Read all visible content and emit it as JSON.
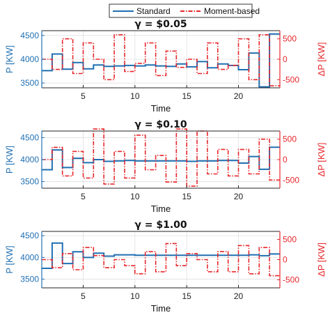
{
  "legend": {
    "standard_label": "Standard",
    "moment_label": "Moment-based"
  },
  "colors": {
    "standard": "#1f6fb2",
    "moment": "#e8262a",
    "grid": "#e0e0e0"
  },
  "chart_data": [
    {
      "type": "line",
      "step": true,
      "title": "γ = $0.05",
      "xlabel": "Time",
      "ylabel_left": "P [KW]",
      "ylabel_right": "ΔP [KW]",
      "xlim": [
        1,
        24
      ],
      "ylim_left": [
        3400,
        4600
      ],
      "ylim_right": [
        -700,
        700
      ],
      "yticks_left": [
        3500,
        4000,
        4500
      ],
      "yticks_right": [
        -500,
        0,
        500
      ],
      "xticks": [
        5,
        10,
        15,
        20
      ],
      "series": [
        {
          "name": "Standard",
          "axis": "left",
          "values": [
            3760,
            4110,
            3790,
            3930,
            3800,
            3880,
            3850,
            3860,
            3870,
            3860,
            3880,
            3860,
            3850,
            3900,
            3840,
            3950,
            3820,
            3900,
            3870,
            3780,
            4130,
            3420,
            4530
          ]
        },
        {
          "name": "Moment-based",
          "axis": "right",
          "values": [
            0,
            -250,
            500,
            -350,
            400,
            0,
            -500,
            600,
            -300,
            -100,
            400,
            -400,
            200,
            -200,
            0,
            -350,
            400,
            -250,
            -150,
            500,
            -500,
            600,
            -650
          ]
        }
      ]
    },
    {
      "type": "line",
      "step": true,
      "title": "γ = $0.10",
      "xlabel": "Time",
      "ylabel_left": "P [KW]",
      "ylabel_right": "ΔP [KW]",
      "xlim": [
        1,
        24
      ],
      "ylim_left": [
        3350,
        4650
      ],
      "ylim_right": [
        -700,
        700
      ],
      "yticks_left": [
        3500,
        4000,
        4500
      ],
      "yticks_right": [
        -500,
        0,
        500
      ],
      "xticks": [
        5,
        10,
        15,
        20
      ],
      "series": [
        {
          "name": "Standard",
          "axis": "left",
          "values": [
            3770,
            4220,
            3820,
            4030,
            3930,
            4000,
            3960,
            3970,
            3980,
            3970,
            3970,
            3970,
            3970,
            3970,
            3960,
            3970,
            3970,
            3980,
            3980,
            3920,
            4070,
            3780,
            4280
          ]
        },
        {
          "name": "Moment-based",
          "axis": "right",
          "values": [
            0,
            300,
            -400,
            200,
            -450,
            750,
            -600,
            200,
            -450,
            600,
            -250,
            100,
            -550,
            750,
            -650,
            700,
            -350,
            250,
            -400,
            250,
            -350,
            500,
            -500
          ]
        }
      ]
    },
    {
      "type": "line",
      "step": true,
      "title": "γ = $1.00",
      "xlabel": "Time",
      "ylabel_left": "P [KW]",
      "ylabel_right": "ΔP [KW]",
      "xlim": [
        1,
        24
      ],
      "ylim_left": [
        3300,
        4600
      ],
      "ylim_right": [
        -700,
        700
      ],
      "yticks_left": [
        3500,
        4000,
        4500
      ],
      "yticks_right": [
        -500,
        0,
        500
      ],
      "xticks": [
        5,
        10,
        15,
        20
      ],
      "series": [
        {
          "name": "Standard",
          "axis": "left",
          "values": [
            3750,
            4330,
            3860,
            4130,
            4000,
            4100,
            4030,
            4060,
            4060,
            4050,
            4050,
            4050,
            4050,
            4050,
            4050,
            4050,
            4050,
            4050,
            4050,
            4050,
            4060,
            4040,
            4080
          ]
        },
        {
          "name": "Moment-based",
          "axis": "right",
          "values": [
            0,
            -200,
            150,
            -250,
            300,
            100,
            -200,
            0,
            -150,
            -350,
            200,
            -300,
            400,
            -150,
            150,
            0,
            -300,
            200,
            -300,
            350,
            -350,
            300,
            -400
          ]
        }
      ]
    }
  ]
}
